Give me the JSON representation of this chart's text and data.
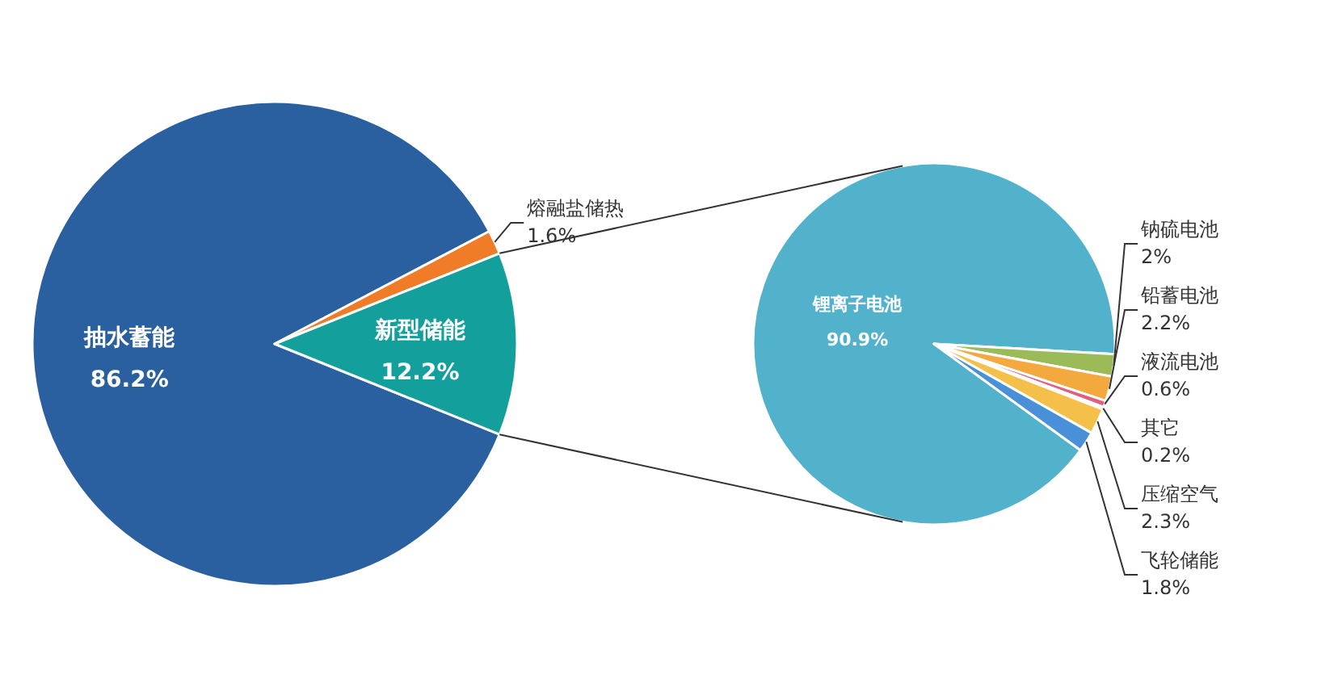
{
  "chart_data": [
    {
      "type": "pie",
      "categories": [
        "抽水蓄能",
        "熔融盐储热",
        "新型储能"
      ],
      "values": [
        86.2,
        1.6,
        12.2
      ],
      "colors": [
        "#2a5fa0",
        "#f07c28",
        "#13a09c"
      ],
      "value_labels": [
        "86.2%",
        "1.6%",
        "12.2%"
      ]
    },
    {
      "type": "pie",
      "categories": [
        "锂离子电池",
        "钠硫电池",
        "铅蓄电池",
        "液流电池",
        "其它",
        "压缩空气",
        "飞轮储能"
      ],
      "values": [
        90.9,
        2,
        2.2,
        0.6,
        0.2,
        2.3,
        1.8
      ],
      "colors": [
        "#52b2cc",
        "#9bbb59",
        "#f4a93f",
        "#e0607e",
        "#c9a0dc",
        "#f5c04a",
        "#4a90d9"
      ],
      "value_labels": [
        "90.9%",
        "2%",
        "2.2%",
        "0.6%",
        "0.2%",
        "2.3%",
        "1.8%"
      ]
    }
  ]
}
